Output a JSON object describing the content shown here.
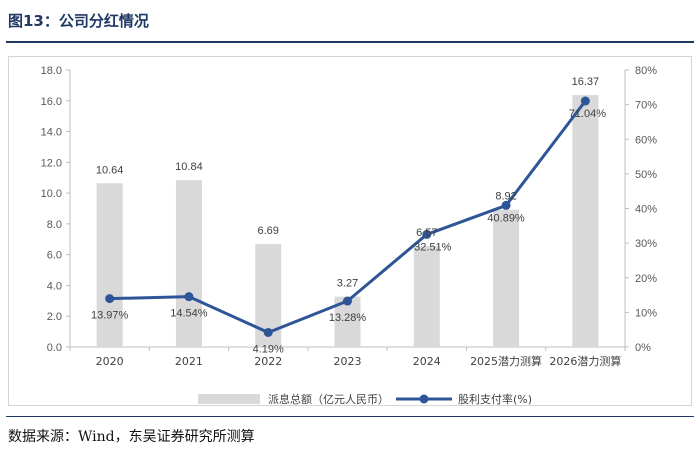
{
  "figure": {
    "title": "图13：公司分红情况",
    "source": "数据来源：Wind，东吴证券研究所测算"
  },
  "colors": {
    "bar": "#d9d9d9",
    "line": "#2e5597",
    "rule": "#1f3864"
  },
  "chart_data": {
    "type": "bar",
    "categories": [
      "2020",
      "2021",
      "2022",
      "2023",
      "2024",
      "2025潜力测算",
      "2026潜力测算"
    ],
    "series": [
      {
        "name": "派息总额（亿元人民币）",
        "type": "bar",
        "axis": "left",
        "values": [
          10.64,
          10.84,
          6.69,
          3.27,
          6.57,
          8.92,
          16.37
        ],
        "labels": [
          "10.64",
          "10.84",
          "6.69",
          "3.27",
          "6.57",
          "8.92",
          "16.37"
        ]
      },
      {
        "name": "股利支付率(%)",
        "type": "line",
        "axis": "right",
        "values": [
          13.97,
          14.54,
          4.19,
          13.28,
          32.51,
          40.89,
          71.04
        ],
        "labels": [
          "13.97%",
          "14.54%",
          "4.19%",
          "13.28%",
          "32.51%",
          "40.89%",
          "71.04%"
        ]
      }
    ],
    "y_left": {
      "min": 0,
      "max": 18,
      "step": 2,
      "ticks": [
        "0.0",
        "2.0",
        "4.0",
        "6.0",
        "8.0",
        "10.0",
        "12.0",
        "14.0",
        "16.0",
        "18.0"
      ]
    },
    "y_right": {
      "min": 0,
      "max": 80,
      "step": 10,
      "ticks": [
        "0%",
        "10%",
        "20%",
        "30%",
        "40%",
        "50%",
        "60%",
        "70%",
        "80%"
      ]
    },
    "grid": false,
    "legend_position": "bottom"
  }
}
